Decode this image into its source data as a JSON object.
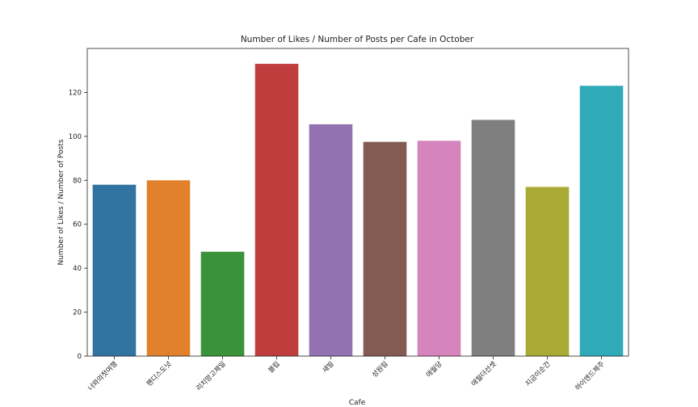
{
  "chart_data": {
    "type": "bar",
    "title": "Number of Likes / Number of Posts per Cafe in October",
    "xlabel": "Cafe",
    "ylabel": "Number of Likes / Number of Posts",
    "categories": [
      "너와의첫여행",
      "팬디스도넛",
      "리치망고제일",
      "블립",
      "새빌",
      "성원림",
      "애월당",
      "애월더선셋",
      "지금이순간",
      "하이엔드제주"
    ],
    "values": [
      78,
      80,
      47.5,
      133,
      105.5,
      97.5,
      98,
      107.5,
      77,
      123
    ],
    "colors": [
      "#3274a1",
      "#e1812c",
      "#3a923a",
      "#c03d3e",
      "#9372b2",
      "#845b53",
      "#d684bd",
      "#7f7f7f",
      "#a9aa35",
      "#2eaab8"
    ],
    "yticks": [
      0,
      20,
      40,
      60,
      80,
      100,
      120
    ],
    "ylim": [
      0,
      140
    ],
    "grid": false,
    "legend": "none"
  }
}
